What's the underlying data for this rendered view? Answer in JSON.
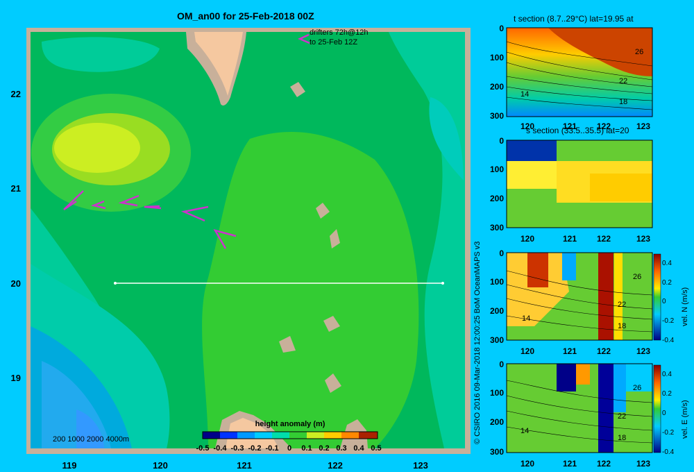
{
  "map": {
    "title": "OM_an00 for 25-Feb-2018 00Z",
    "drifters_line1": "drifters 72h@12h",
    "drifters_line2": "to 25-Feb 12Z",
    "lon_ticks": [
      "119",
      "120",
      "121",
      "122",
      "123"
    ],
    "lat_ticks": [
      "22",
      "21",
      "20",
      "19"
    ],
    "depth_legend": "200  1000  2000  4000m",
    "colorbar_title": "height anomaly  (m)",
    "colorbar_ticks": [
      "-0.5",
      "-0.4",
      "-0.3",
      "-0.2",
      "-0.1",
      "0",
      "0.1",
      "0.2",
      "0.3",
      "0.4",
      "0.5"
    ]
  },
  "credit": "© CSIRO 2016   09-Mar-2018 12:00:25 BoM OceanMAPS v3",
  "panels": {
    "t_section": {
      "title": "t section (8.7..29°C) lat=19.95 at",
      "depth_ticks": [
        "0",
        "100",
        "200",
        "300"
      ],
      "lon_ticks": [
        "120",
        "121",
        "122",
        "123"
      ],
      "contour_labels": [
        "26",
        "22",
        "14",
        "18"
      ]
    },
    "s_section": {
      "title": "s section (33.5..35.5) lat=20",
      "depth_ticks": [
        "0",
        "100",
        "200",
        "300"
      ],
      "lon_ticks": [
        "120",
        "121",
        "122",
        "123"
      ]
    },
    "vn_section": {
      "depth_ticks": [
        "0",
        "100",
        "200",
        "300"
      ],
      "lon_ticks": [
        "120",
        "121",
        "122",
        "123"
      ],
      "contour_labels": [
        "26",
        "22",
        "14",
        "18"
      ],
      "cbar_ticks": [
        "0.4",
        "0.2",
        "0",
        "-0.2",
        "-0.4"
      ],
      "cbar_label": "vel. N  (m/s)"
    },
    "ve_section": {
      "depth_ticks": [
        "0",
        "100",
        "200",
        "300"
      ],
      "lon_ticks": [
        "120",
        "121",
        "122",
        "123"
      ],
      "contour_labels": [
        "26",
        "22",
        "14",
        "18"
      ],
      "cbar_ticks": [
        "0.4",
        "0.2",
        "0",
        "-0.2",
        "-0.4"
      ],
      "cbar_label": "vel. E  (m/s)"
    }
  },
  "colors": {
    "background": "#00ccff",
    "frame": "#c8b09a",
    "land": "#f5c8a0",
    "drifter": "#cc33cc",
    "anomaly_high": "#ccff33",
    "anomaly_mid": "#33cc33",
    "anomaly_low": "#33aaff"
  }
}
